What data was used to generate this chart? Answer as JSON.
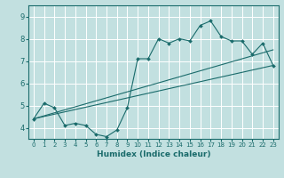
{
  "title": "",
  "xlabel": "Humidex (Indice chaleur)",
  "bg_color": "#c2e0e0",
  "grid_color": "#ffffff",
  "line_color": "#1a6b6b",
  "xlim": [
    -0.5,
    23.5
  ],
  "ylim": [
    3.5,
    9.5
  ],
  "xticks": [
    0,
    1,
    2,
    3,
    4,
    5,
    6,
    7,
    8,
    9,
    10,
    11,
    12,
    13,
    14,
    15,
    16,
    17,
    18,
    19,
    20,
    21,
    22,
    23
  ],
  "yticks": [
    4,
    5,
    6,
    7,
    8,
    9
  ],
  "main_line": {
    "x": [
      0,
      1,
      2,
      3,
      4,
      5,
      6,
      7,
      8,
      9,
      10,
      11,
      12,
      13,
      14,
      15,
      16,
      17,
      18,
      19,
      20,
      21,
      22,
      23
    ],
    "y": [
      4.4,
      5.1,
      4.9,
      4.1,
      4.2,
      4.1,
      3.7,
      3.6,
      3.9,
      4.9,
      7.1,
      7.1,
      8.0,
      7.8,
      8.0,
      7.9,
      8.6,
      8.8,
      8.1,
      7.9,
      7.9,
      7.3,
      7.8,
      6.8
    ]
  },
  "trend_line1": {
    "x": [
      0,
      23
    ],
    "y": [
      4.4,
      6.8
    ]
  },
  "trend_line2": {
    "x": [
      0,
      23
    ],
    "y": [
      4.4,
      7.5
    ]
  }
}
